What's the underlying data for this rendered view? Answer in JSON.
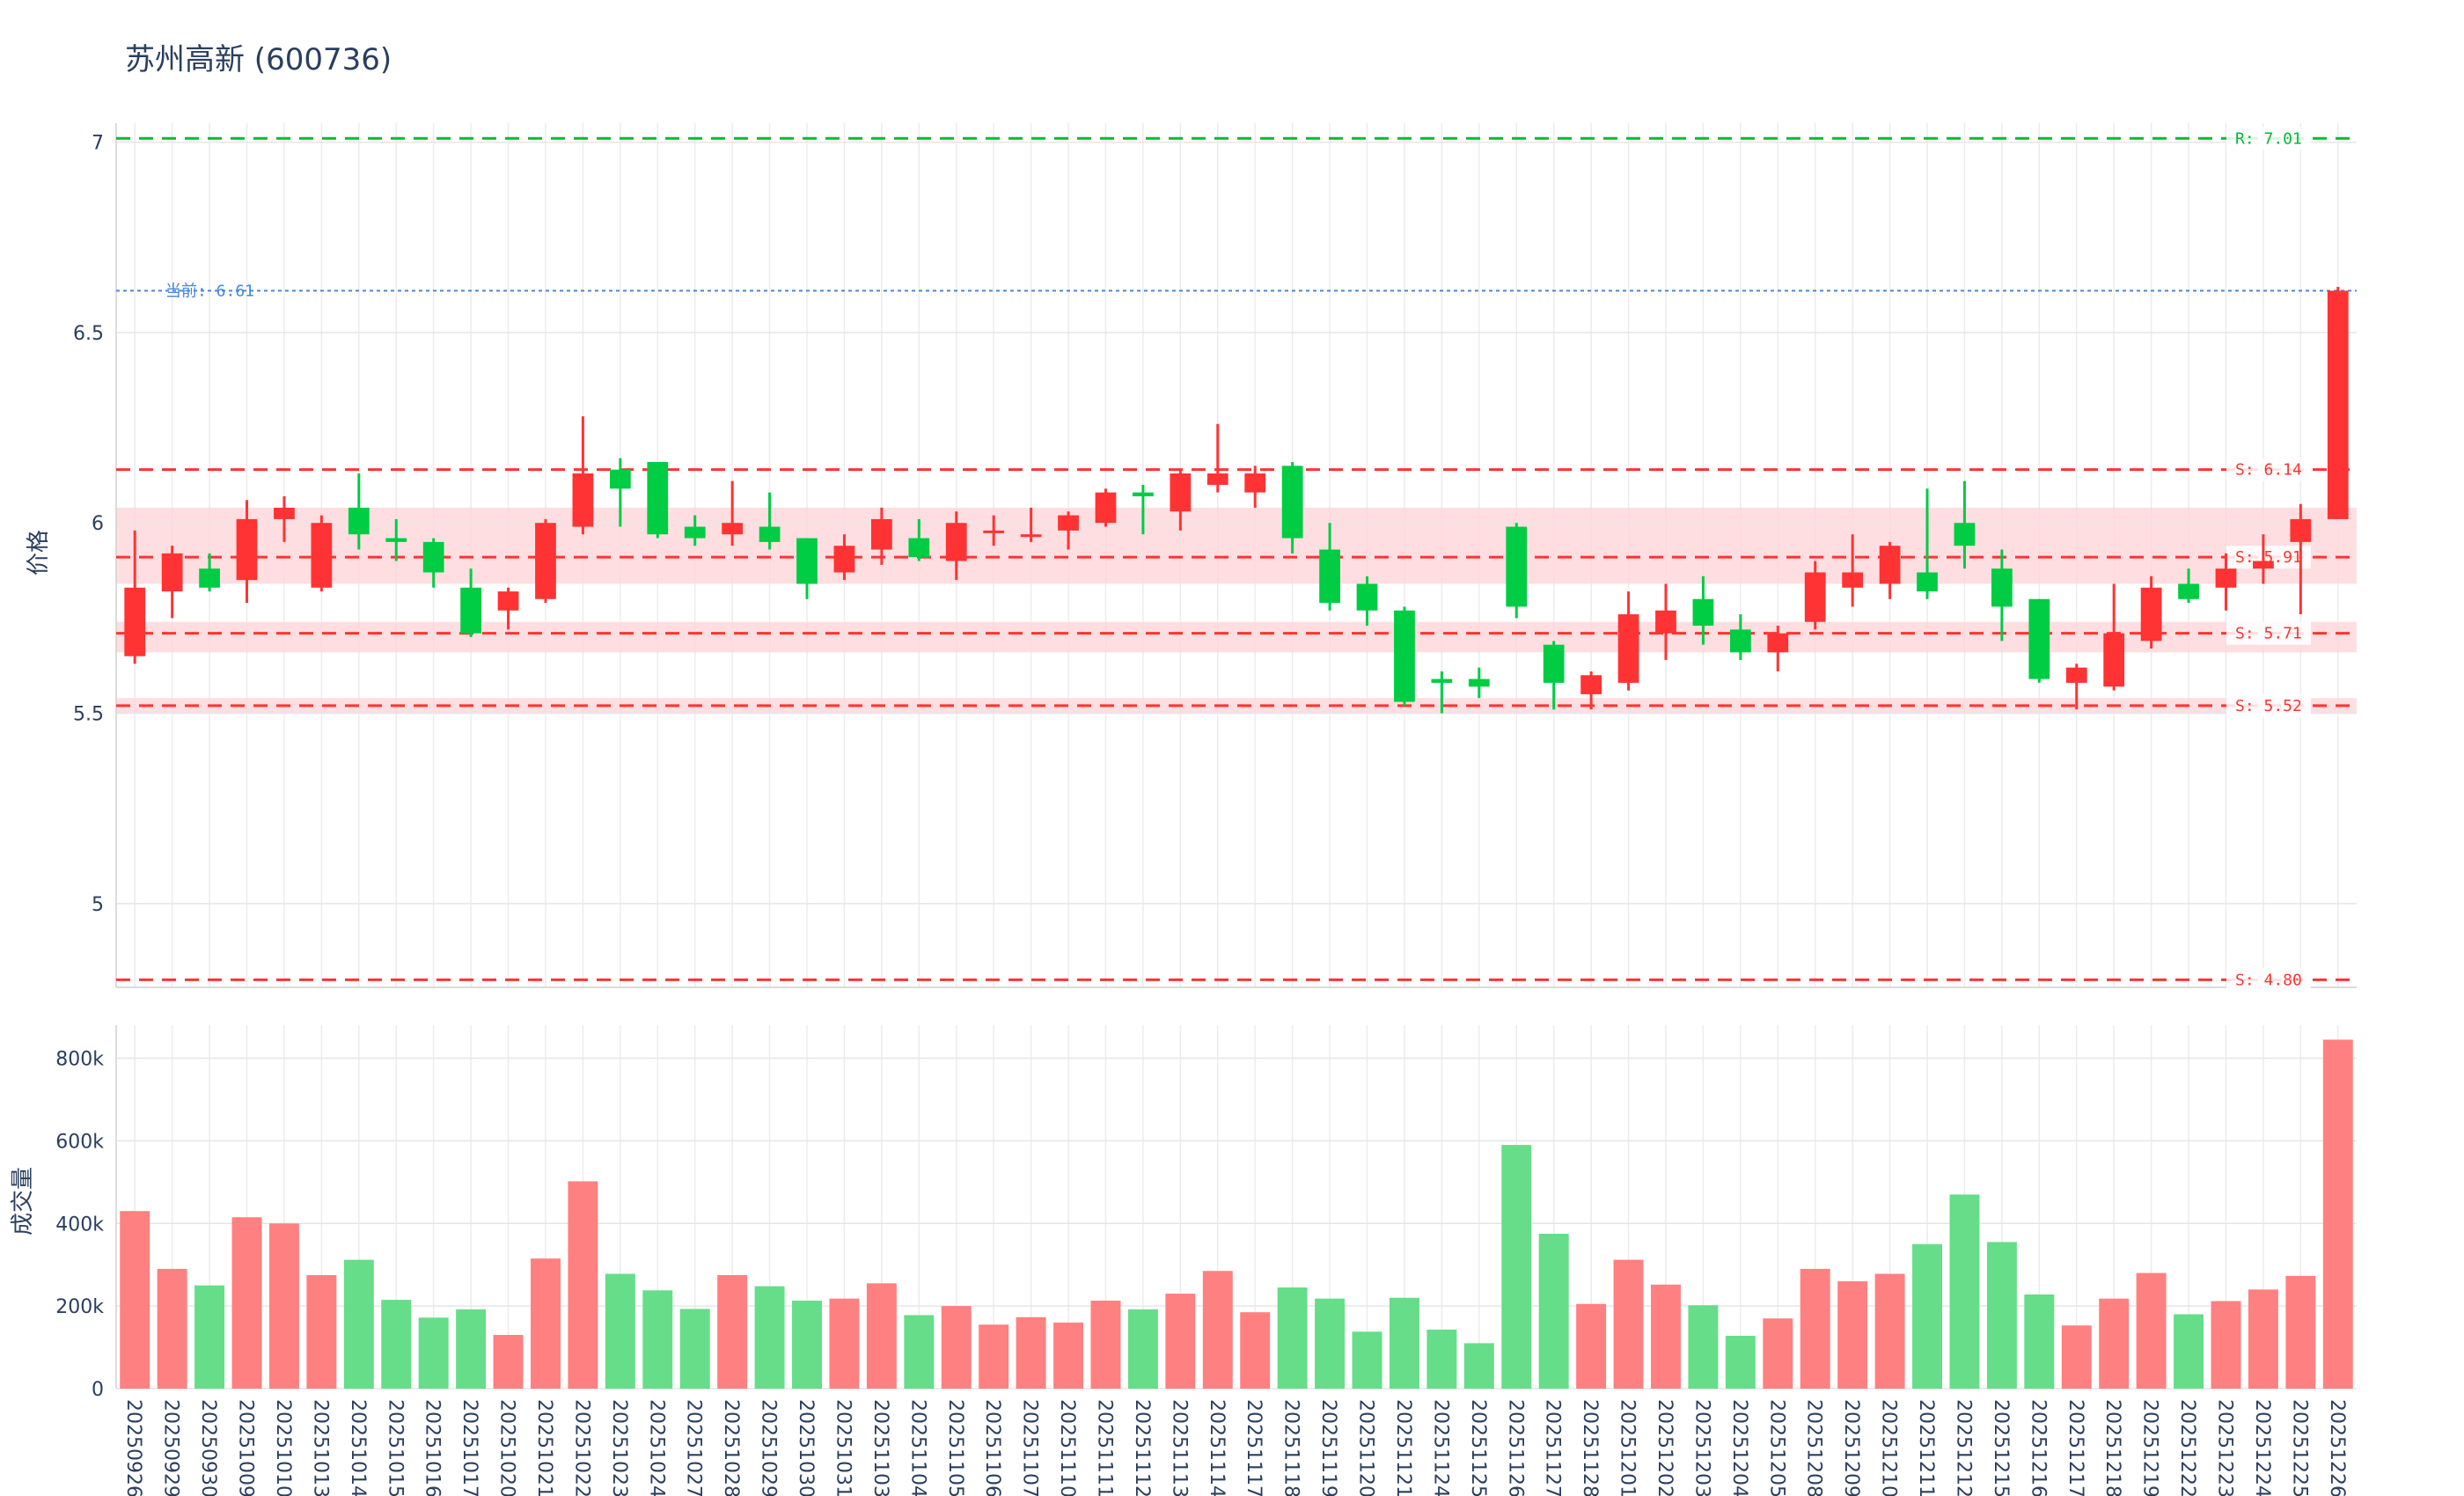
{
  "title": "苏州高新 (600736)",
  "chart_data": [
    {
      "type": "candlestick",
      "ylabel": "价格",
      "ylim": [
        4.78,
        7.05
      ],
      "yticks": [
        5,
        5.5,
        6,
        6.5,
        7
      ],
      "grid": true,
      "colors": {
        "up": "#ff3333",
        "down": "#00cc44",
        "resistance": "#00bb33",
        "support": "#ff3333",
        "current": "#4488dd",
        "zone": "#ffd6da"
      },
      "dates": [
        "20250926",
        "20250929",
        "20250930",
        "20251009",
        "20251010",
        "20251013",
        "20251014",
        "20251015",
        "20251016",
        "20251017",
        "20251020",
        "20251021",
        "20251022",
        "20251023",
        "20251024",
        "20251027",
        "20251028",
        "20251029",
        "20251030",
        "20251031",
        "20251103",
        "20251104",
        "20251105",
        "20251106",
        "20251107",
        "20251110",
        "20251111",
        "20251112",
        "20251113",
        "20251114",
        "20251117",
        "20251118",
        "20251119",
        "20251120",
        "20251121",
        "20251124",
        "20251125",
        "20251126",
        "20251127",
        "20251128",
        "20251201",
        "20251202",
        "20251203",
        "20251204",
        "20251205",
        "20251208",
        "20251209",
        "20251210",
        "20251211",
        "20251212",
        "20251215",
        "20251216",
        "20251217",
        "20251218",
        "20251219",
        "20251222",
        "20251223",
        "20251224",
        "20251225",
        "20251226"
      ],
      "open": [
        5.65,
        5.82,
        5.88,
        5.85,
        6.01,
        5.83,
        6.04,
        5.96,
        5.95,
        5.83,
        5.77,
        5.8,
        5.99,
        6.14,
        6.16,
        5.99,
        5.97,
        5.99,
        5.96,
        5.87,
        5.93,
        5.96,
        5.9,
        5.98,
        5.97,
        5.98,
        6.0,
        6.08,
        6.03,
        6.1,
        6.08,
        6.15,
        5.93,
        5.84,
        5.77,
        5.59,
        5.59,
        5.99,
        5.68,
        5.55,
        5.58,
        5.71,
        5.8,
        5.72,
        5.66,
        5.74,
        5.83,
        5.84,
        5.87,
        6.0,
        5.88,
        5.8,
        5.58,
        5.57,
        5.69,
        5.84,
        5.83,
        5.88,
        5.95,
        6.01
      ],
      "close": [
        5.83,
        5.92,
        5.83,
        6.01,
        6.04,
        6.0,
        5.97,
        5.95,
        5.87,
        5.71,
        5.82,
        6.0,
        6.13,
        6.09,
        5.97,
        5.96,
        6.0,
        5.95,
        5.84,
        5.94,
        6.01,
        5.91,
        6.0,
        5.98,
        5.97,
        6.02,
        6.08,
        6.07,
        6.13,
        6.13,
        6.13,
        5.96,
        5.79,
        5.77,
        5.53,
        5.58,
        5.57,
        5.78,
        5.58,
        5.6,
        5.76,
        5.77,
        5.73,
        5.66,
        5.71,
        5.87,
        5.87,
        5.94,
        5.82,
        5.94,
        5.78,
        5.59,
        5.62,
        5.71,
        5.83,
        5.8,
        5.88,
        5.9,
        6.01,
        6.61
      ],
      "high": [
        5.98,
        5.94,
        5.92,
        6.06,
        6.07,
        6.02,
        6.13,
        6.01,
        5.96,
        5.88,
        5.83,
        6.01,
        6.28,
        6.17,
        6.16,
        6.02,
        6.11,
        6.08,
        5.96,
        5.97,
        6.04,
        6.01,
        6.03,
        6.02,
        6.04,
        6.03,
        6.09,
        6.1,
        6.14,
        6.26,
        6.15,
        6.16,
        6.0,
        5.86,
        5.78,
        5.61,
        5.62,
        6.0,
        5.69,
        5.61,
        5.82,
        5.84,
        5.86,
        5.76,
        5.73,
        5.9,
        5.97,
        5.95,
        6.09,
        6.11,
        5.93,
        5.8,
        5.63,
        5.84,
        5.86,
        5.88,
        5.92,
        5.97,
        6.05,
        6.62
      ],
      "low": [
        5.63,
        5.75,
        5.82,
        5.79,
        5.95,
        5.82,
        5.93,
        5.9,
        5.83,
        5.7,
        5.72,
        5.79,
        5.97,
        5.99,
        5.96,
        5.94,
        5.94,
        5.93,
        5.8,
        5.85,
        5.89,
        5.9,
        5.85,
        5.94,
        5.95,
        5.93,
        5.99,
        5.97,
        5.98,
        6.08,
        6.04,
        5.92,
        5.77,
        5.73,
        5.52,
        5.5,
        5.54,
        5.75,
        5.51,
        5.51,
        5.56,
        5.64,
        5.68,
        5.64,
        5.61,
        5.72,
        5.78,
        5.8,
        5.8,
        5.88,
        5.69,
        5.58,
        5.51,
        5.56,
        5.67,
        5.79,
        5.77,
        5.84,
        5.76,
        6.01
      ],
      "current": {
        "value": 6.61,
        "label": "当前: 6.61"
      },
      "levels": [
        {
          "value": 7.01,
          "label": "R: 7.01",
          "kind": "resistance"
        },
        {
          "value": 6.14,
          "label": "S: 6.14",
          "kind": "support"
        },
        {
          "value": 5.91,
          "label": "S: 5.91",
          "kind": "support"
        },
        {
          "value": 5.71,
          "label": "S: 5.71",
          "kind": "support"
        },
        {
          "value": 5.52,
          "label": "S: 5.52",
          "kind": "support"
        },
        {
          "value": 4.8,
          "label": "S: 4.80",
          "kind": "support"
        }
      ],
      "zones": [
        [
          5.84,
          6.04
        ],
        [
          5.66,
          5.74
        ],
        [
          5.5,
          5.54
        ]
      ]
    },
    {
      "type": "bar",
      "ylabel": "成交量",
      "ylim": [
        0,
        880000
      ],
      "yticks": [
        0,
        200000,
        400000,
        600000,
        800000
      ],
      "ytick_labels": [
        "0",
        "200k",
        "400k",
        "600k",
        "800k"
      ],
      "grid": true,
      "colors": {
        "up": "#ff8080",
        "down": "#66dd88"
      },
      "volume": [
        430000,
        290000,
        250000,
        415000,
        400000,
        275000,
        312000,
        215000,
        172000,
        192000,
        130000,
        315000,
        502000,
        278000,
        238000,
        193000,
        275000,
        248000,
        213000,
        218000,
        255000,
        178000,
        200000,
        155000,
        173000,
        160000,
        213000,
        192000,
        230000,
        285000,
        185000,
        245000,
        218000,
        138000,
        220000,
        143000,
        110000,
        590000,
        375000,
        205000,
        312000,
        252000,
        202000,
        128000,
        170000,
        290000,
        260000,
        278000,
        350000,
        470000,
        355000,
        228000,
        153000,
        218000,
        280000,
        180000,
        212000,
        240000,
        273000,
        845000
      ]
    }
  ]
}
